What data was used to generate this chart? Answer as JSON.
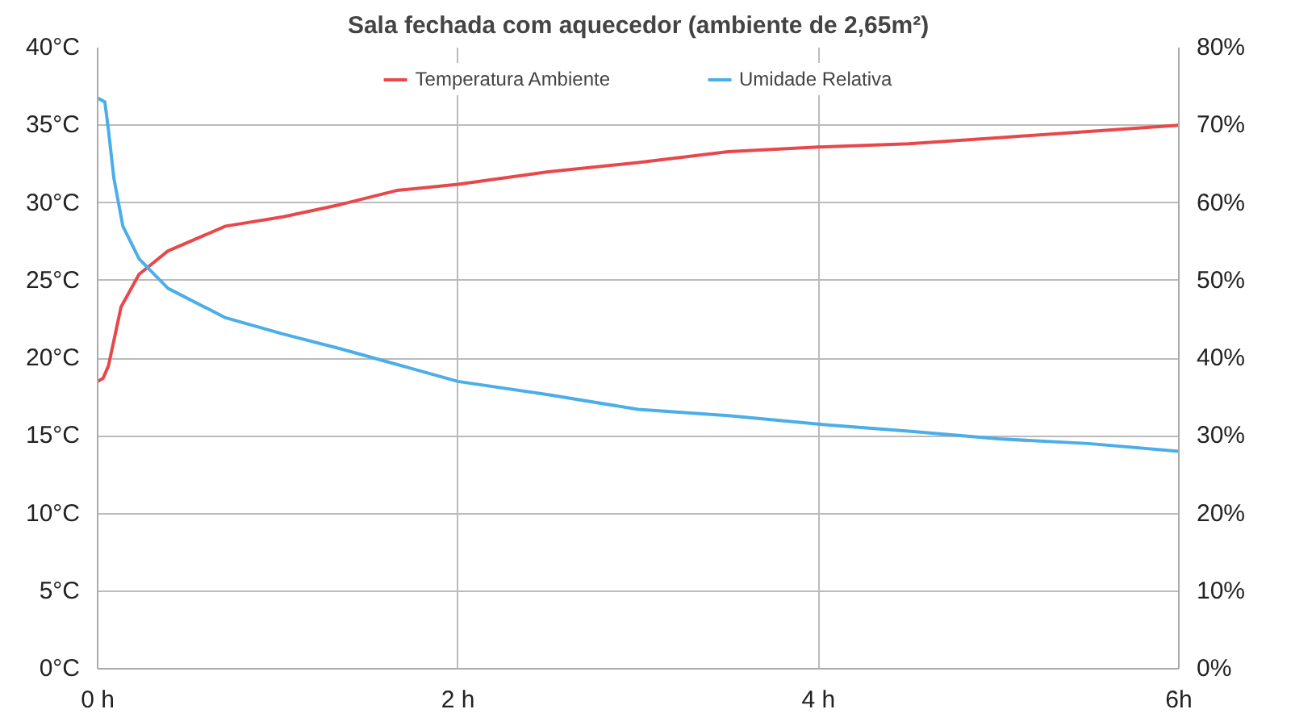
{
  "chart_data": {
    "type": "line",
    "title": "Sala fechada com aquecedor (ambiente de 2,65m²)",
    "xlim": [
      0,
      6
    ],
    "xticks": [
      {
        "value": 0,
        "label": "0 h"
      },
      {
        "value": 2,
        "label": "2 h"
      },
      {
        "value": 4,
        "label": "4 h"
      },
      {
        "value": 6,
        "label": "6h"
      }
    ],
    "ylim": [
      0,
      40
    ],
    "yticks": [
      {
        "value": 0,
        "label": "0°C"
      },
      {
        "value": 5,
        "label": "5°C"
      },
      {
        "value": 10,
        "label": "10°C"
      },
      {
        "value": 15,
        "label": "15°C"
      },
      {
        "value": 20,
        "label": "20°C"
      },
      {
        "value": 25,
        "label": "25°C"
      },
      {
        "value": 30,
        "label": "30°C"
      },
      {
        "value": 35,
        "label": "35°C"
      },
      {
        "value": 40,
        "label": "40°C"
      }
    ],
    "y2lim": [
      0,
      80
    ],
    "y2ticks": [
      {
        "value": 0,
        "label": "0%"
      },
      {
        "value": 10,
        "label": "10%"
      },
      {
        "value": 20,
        "label": "20%"
      },
      {
        "value": 30,
        "label": "30%"
      },
      {
        "value": 40,
        "label": "40%"
      },
      {
        "value": 50,
        "label": "50%"
      },
      {
        "value": 60,
        "label": "60%"
      },
      {
        "value": 70,
        "label": "70%"
      },
      {
        "value": 80,
        "label": "80%"
      }
    ],
    "grid": true,
    "legend": "top",
    "marker": "none",
    "line_style": "solid",
    "series": [
      {
        "name": "Temperatura Ambiente",
        "color": "#e8484a",
        "x": [
          0,
          0.03,
          0.06,
          0.13,
          0.23,
          0.39,
          0.71,
          1.03,
          1.35,
          1.66,
          2,
          2.5,
          3,
          3.5,
          4,
          4.5,
          5,
          5.5,
          6
        ],
        "values": [
          18.5,
          18.7,
          19.5,
          23.3,
          25.4,
          26.9,
          28.5,
          29.1,
          29.9,
          30.8,
          31.2,
          32,
          32.6,
          33.3,
          33.6,
          33.8,
          34.2,
          34.6,
          35
        ]
      },
      {
        "name": "Umidade Relativa",
        "color": "#4baee8",
        "axis": "y2",
        "x": [
          0,
          0.04,
          0.06,
          0.09,
          0.14,
          0.23,
          0.39,
          0.71,
          1.03,
          1.35,
          1.66,
          2,
          2.5,
          3,
          3.5,
          4,
          4.5,
          5,
          5.5,
          6
        ],
        "values": [
          73.5,
          73,
          69.4,
          63.2,
          57,
          52.8,
          49,
          45.2,
          43.1,
          41.2,
          39.2,
          37,
          35.3,
          33.4,
          32.6,
          31.5,
          30.6,
          29.6,
          29,
          28
        ]
      }
    ]
  }
}
